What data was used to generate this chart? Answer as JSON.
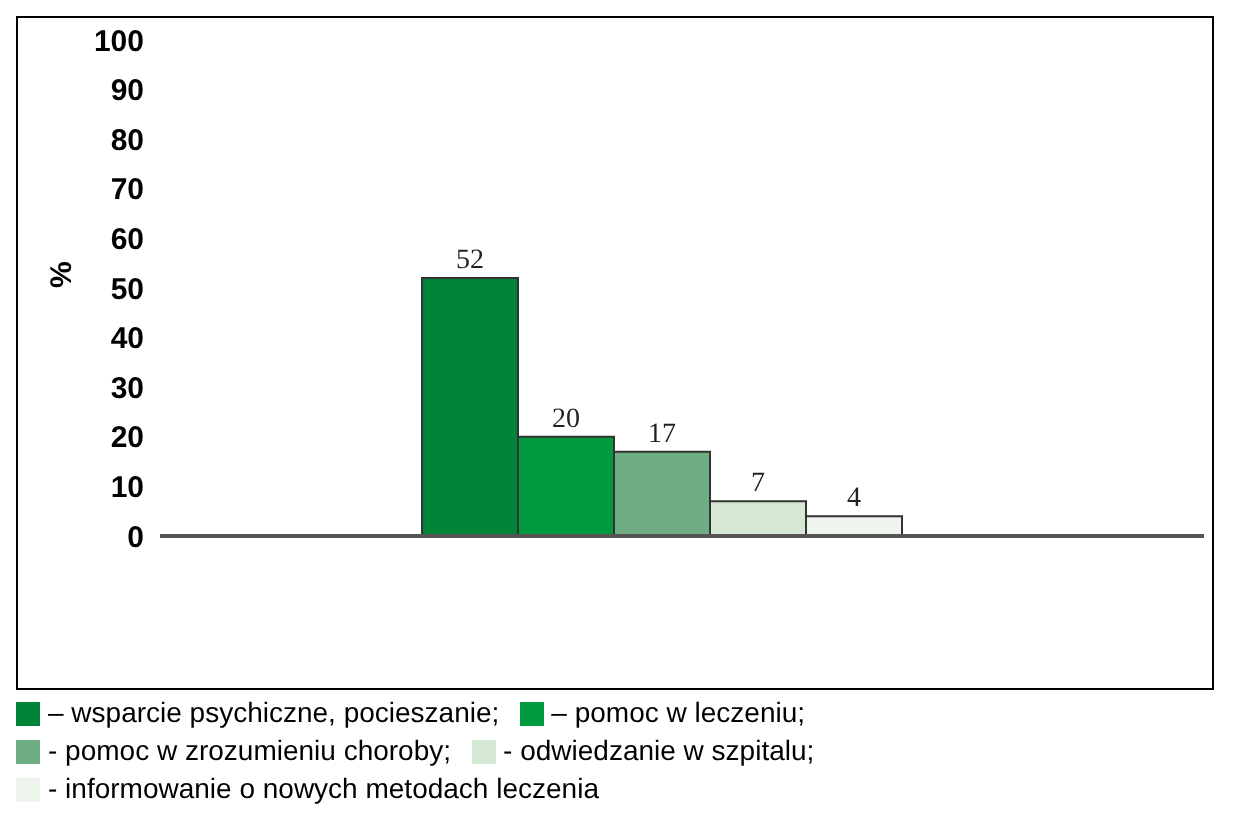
{
  "chart_data": {
    "type": "bar",
    "ylabel": "%",
    "categories": [
      null
    ],
    "series": [
      {
        "name": "– wsparcie psychiczne, pocieszanie;",
        "color": "#00843a",
        "values": [
          52
        ]
      },
      {
        "name": "– pomoc w leczeniu;",
        "color": "#009b3e",
        "values": [
          20
        ]
      },
      {
        "name": "- pomoc w zrozumieniu choroby;",
        "color": "#6fae85",
        "values": [
          17
        ]
      },
      {
        "name": "- odwiedzanie w szpitalu;",
        "color": "#d4e8d4",
        "values": [
          7
        ]
      },
      {
        "name": "- informowanie o nowych metodach leczenia",
        "color": "#eef5ec",
        "values": [
          4
        ]
      }
    ],
    "ylim": [
      0,
      100
    ],
    "yticks": [
      0,
      10,
      20,
      30,
      40,
      50,
      60,
      70,
      80,
      90,
      100
    ],
    "grid": false,
    "legend": "bottom",
    "data_labels": true
  }
}
